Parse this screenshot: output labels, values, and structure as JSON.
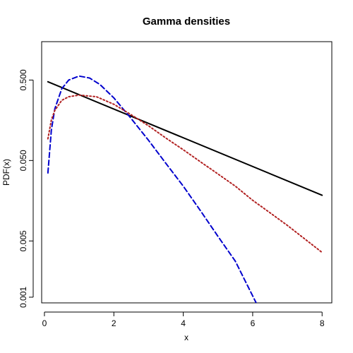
{
  "chart_data": {
    "type": "line",
    "title": "Gamma densities",
    "xlabel": "x",
    "ylabel": "PDF(x)",
    "xlim": [
      -0.08,
      8.28
    ],
    "ylim": [
      0.00085,
      1.5
    ],
    "y_scale": "log",
    "x_ticks": [
      0,
      2,
      4,
      6,
      8
    ],
    "x_tick_labels": [
      "0",
      "2",
      "4",
      "6",
      "8"
    ],
    "y_ticks": [
      0.001,
      0.005,
      0.05,
      0.5
    ],
    "y_tick_labels": [
      "0.001",
      "0.005",
      "0.050",
      "0.500"
    ],
    "grid": false,
    "series": [
      {
        "color": "#000000",
        "line_style": "solid",
        "x": [
          0.1,
          8.0
        ],
        "y": [
          0.476,
          0.0185
        ]
      },
      {
        "color": "#0000CD",
        "line_style": "dashed",
        "x": [
          0.1,
          0.2,
          0.3,
          0.5,
          0.7,
          1.0,
          1.3,
          1.6,
          2.0,
          2.5,
          3.0,
          3.5,
          4.0,
          4.5,
          5.0,
          5.5,
          6.1
        ],
        "y": [
          0.035,
          0.12,
          0.22,
          0.39,
          0.5,
          0.56,
          0.53,
          0.44,
          0.3,
          0.166,
          0.089,
          0.046,
          0.024,
          0.0118,
          0.0057,
          0.0028,
          0.00085
        ]
      },
      {
        "color": "#B22222",
        "line_style": "dotted",
        "x": [
          0.1,
          0.2,
          0.3,
          0.5,
          0.7,
          1.0,
          1.5,
          2.0,
          2.5,
          3.0,
          3.5,
          4.0,
          4.5,
          5.0,
          5.5,
          6.0,
          6.5,
          7.0,
          7.5,
          8.0
        ],
        "y": [
          0.093,
          0.16,
          0.21,
          0.28,
          0.31,
          0.325,
          0.31,
          0.25,
          0.185,
          0.135,
          0.095,
          0.068,
          0.048,
          0.034,
          0.024,
          0.016,
          0.0112,
          0.0078,
          0.0053,
          0.0036
        ]
      }
    ]
  }
}
